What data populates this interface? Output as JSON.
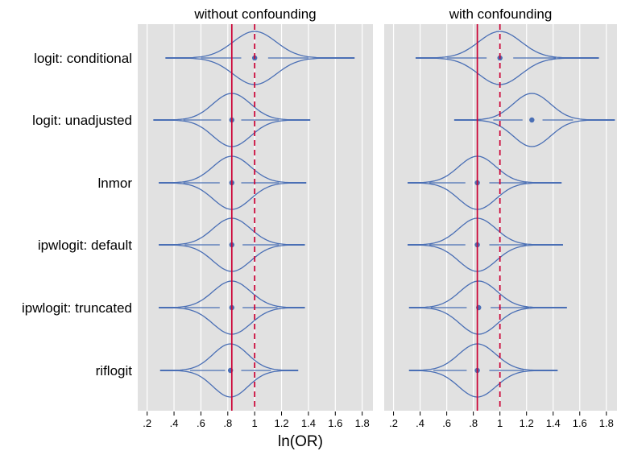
{
  "chart_data": {
    "type": "violin",
    "xlabel": "ln(OR)",
    "xlim": [
      0.2,
      1.8
    ],
    "xticks": [
      ".2",
      ".4",
      ".6",
      ".8",
      "1",
      "1.2",
      "1.4",
      "1.6",
      "1.8"
    ],
    "xtick_values": [
      0.2,
      0.4,
      0.6,
      0.8,
      1.0,
      1.2,
      1.4,
      1.6,
      1.8
    ],
    "grid": true,
    "reference_lines": [
      {
        "value": 0.83,
        "style": "solid",
        "color": "#cc0033"
      },
      {
        "value": 1.0,
        "style": "dashed",
        "color": "#cc0033"
      }
    ],
    "categories": [
      "logit: conditional",
      "logit: unadjusted",
      "lnmor",
      "ipwlogit: default",
      "ipwlogit: truncated",
      "riflogit"
    ],
    "panels": [
      {
        "title": "without confounding",
        "violins": [
          {
            "median": 1.0,
            "q1": 0.9,
            "q3": 1.1,
            "wmin": 0.6,
            "wmax": 1.4,
            "min": 0.34,
            "max": 1.74,
            "bw": 0.16
          },
          {
            "median": 0.83,
            "q1": 0.75,
            "q3": 0.9,
            "wmin": 0.47,
            "wmax": 1.18,
            "min": 0.25,
            "max": 1.41,
            "bw": 0.14
          },
          {
            "median": 0.83,
            "q1": 0.74,
            "q3": 0.9,
            "wmin": 0.47,
            "wmax": 1.18,
            "min": 0.29,
            "max": 1.38,
            "bw": 0.14
          },
          {
            "median": 0.83,
            "q1": 0.74,
            "q3": 0.91,
            "wmin": 0.48,
            "wmax": 1.18,
            "min": 0.29,
            "max": 1.37,
            "bw": 0.14
          },
          {
            "median": 0.83,
            "q1": 0.74,
            "q3": 0.91,
            "wmin": 0.48,
            "wmax": 1.17,
            "min": 0.29,
            "max": 1.37,
            "bw": 0.14
          },
          {
            "median": 0.82,
            "q1": 0.78,
            "q3": 0.9,
            "wmin": 0.52,
            "wmax": 1.12,
            "min": 0.3,
            "max": 1.32,
            "bw": 0.13
          }
        ]
      },
      {
        "title": "with confounding",
        "violins": [
          {
            "median": 1.0,
            "q1": 0.9,
            "q3": 1.1,
            "wmin": 0.6,
            "wmax": 1.42,
            "min": 0.37,
            "max": 1.74,
            "bw": 0.16
          },
          {
            "median": 1.24,
            "q1": 1.17,
            "q3": 1.32,
            "wmin": 0.95,
            "wmax": 1.55,
            "min": 0.66,
            "max": 1.86,
            "bw": 0.14
          },
          {
            "median": 0.83,
            "q1": 0.74,
            "q3": 0.92,
            "wmin": 0.47,
            "wmax": 1.2,
            "min": 0.31,
            "max": 1.46,
            "bw": 0.14
          },
          {
            "median": 0.83,
            "q1": 0.74,
            "q3": 0.92,
            "wmin": 0.47,
            "wmax": 1.2,
            "min": 0.31,
            "max": 1.47,
            "bw": 0.14
          },
          {
            "median": 0.84,
            "q1": 0.75,
            "q3": 0.93,
            "wmin": 0.48,
            "wmax": 1.22,
            "min": 0.32,
            "max": 1.5,
            "bw": 0.14
          },
          {
            "median": 0.83,
            "q1": 0.75,
            "q3": 0.92,
            "wmin": 0.5,
            "wmax": 1.18,
            "min": 0.32,
            "max": 1.43,
            "bw": 0.14
          }
        ]
      }
    ],
    "colors": {
      "panel_bg": "#e1e1e1",
      "grid": "#ffffff",
      "violin": "#4a6fb5",
      "reference": "#cc0033"
    }
  }
}
